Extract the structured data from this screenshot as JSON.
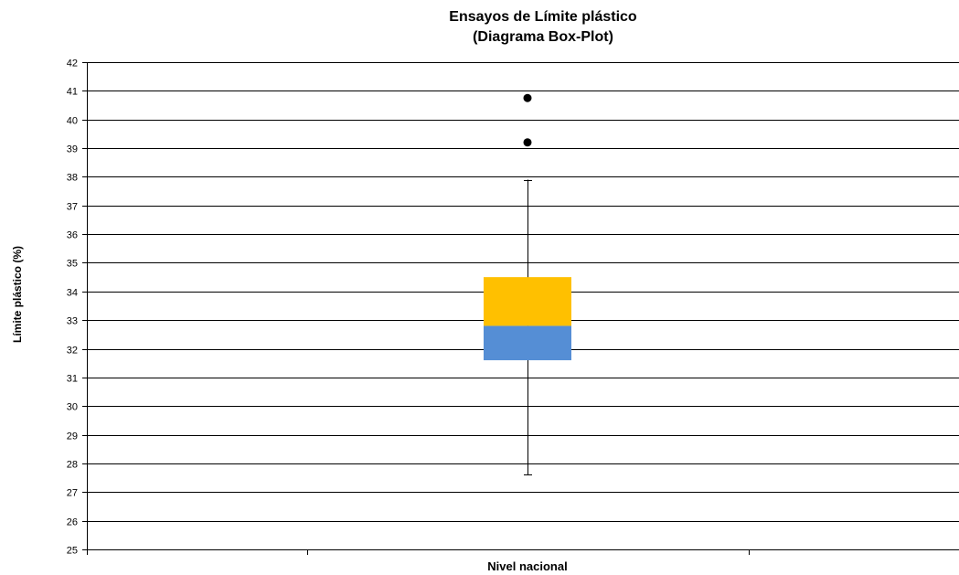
{
  "chart_data": {
    "type": "box",
    "title": [
      "Ensayos de  Límite plástico",
      "(Diagrama Box-Plot)"
    ],
    "xlabel": "Nivel nacional",
    "ylabel": "Límite plástico (%)",
    "ylim": [
      25,
      42
    ],
    "yticks": [
      25,
      26,
      27,
      28,
      29,
      30,
      31,
      32,
      33,
      34,
      35,
      36,
      37,
      38,
      39,
      40,
      41,
      42
    ],
    "grid": true,
    "box": {
      "whisker_low": 27.6,
      "q1": 31.6,
      "median": 32.8,
      "q3": 34.5,
      "whisker_high": 37.9,
      "outliers": [
        39.2,
        40.75
      ]
    },
    "colors": {
      "lower_box": "#558ED5",
      "upper_box": "#FFC000",
      "grid": "#000000",
      "outlier": "#000000"
    }
  }
}
